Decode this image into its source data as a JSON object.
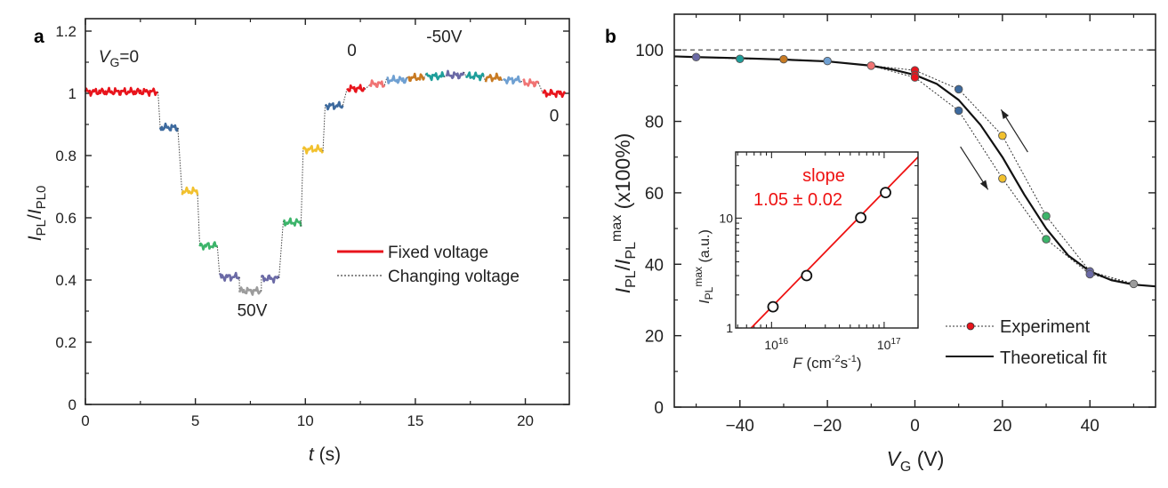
{
  "chart_data": [
    {
      "panel_label": "a",
      "type": "line",
      "xlabel": {
        "var": "t",
        "unit": " (s)"
      },
      "ylabel": {
        "a": "I",
        "a_sub": "PL",
        "slash": "/",
        "b": "I",
        "b_sub": "PL0"
      },
      "xlim": [
        0,
        22
      ],
      "ylim": [
        0,
        1.24
      ],
      "xticks": [
        0,
        5,
        10,
        15,
        20
      ],
      "xtick_labels": [
        "0",
        "5",
        "10",
        "15",
        "20"
      ],
      "yticks": [
        0,
        0.2,
        0.4,
        0.6,
        0.8,
        1.0,
        1.2
      ],
      "ytick_labels": [
        "0",
        "0.2",
        "0.4",
        "0.6",
        "0.8",
        "1",
        "1.2"
      ],
      "segments": [
        {
          "t": [
            0.0,
            3.3
          ],
          "value": 1.005,
          "color": "#e8141c"
        },
        {
          "t": [
            3.4,
            4.2
          ],
          "value": 0.89,
          "color": "#3d6a9e"
        },
        {
          "t": [
            4.4,
            5.1
          ],
          "value": 0.685,
          "color": "#f2c12e"
        },
        {
          "t": [
            5.2,
            6.0
          ],
          "value": 0.51,
          "color": "#3cb46a"
        },
        {
          "t": [
            6.1,
            7.0
          ],
          "value": 0.41,
          "color": "#6b6aa6"
        },
        {
          "t": [
            7.0,
            8.0
          ],
          "value": 0.365,
          "color": "#9c9c9c"
        },
        {
          "t": [
            8.0,
            8.8
          ],
          "value": 0.405,
          "color": "#6b6aa6"
        },
        {
          "t": [
            9.0,
            9.8
          ],
          "value": 0.585,
          "color": "#3cb46a"
        },
        {
          "t": [
            9.9,
            10.8
          ],
          "value": 0.82,
          "color": "#f2c12e"
        },
        {
          "t": [
            10.9,
            11.7
          ],
          "value": 0.96,
          "color": "#3d6a9e"
        },
        {
          "t": [
            11.9,
            12.7
          ],
          "value": 1.015,
          "color": "#e8141c"
        },
        {
          "t": [
            12.9,
            13.6
          ],
          "value": 1.03,
          "color": "#f07474"
        },
        {
          "t": [
            13.7,
            14.6
          ],
          "value": 1.043,
          "color": "#6fa0d2"
        },
        {
          "t": [
            14.7,
            15.4
          ],
          "value": 1.05,
          "color": "#c87a22"
        },
        {
          "t": [
            15.5,
            16.3
          ],
          "value": 1.055,
          "color": "#1e9e9a"
        },
        {
          "t": [
            16.4,
            17.2
          ],
          "value": 1.058,
          "color": "#6b6aa6"
        },
        {
          "t": [
            17.3,
            18.1
          ],
          "value": 1.055,
          "color": "#1e9e9a"
        },
        {
          "t": [
            18.2,
            18.9
          ],
          "value": 1.05,
          "color": "#c87a22"
        },
        {
          "t": [
            19.0,
            19.8
          ],
          "value": 1.043,
          "color": "#6fa0d2"
        },
        {
          "t": [
            19.9,
            20.6
          ],
          "value": 1.033,
          "color": "#f07474"
        },
        {
          "t": [
            20.8,
            21.8
          ],
          "value": 1.0,
          "color": "#e8141c"
        }
      ],
      "annotations": [
        {
          "text": "V",
          "sub": "G",
          "rest": "=0",
          "t": 0.6,
          "y": 1.1
        },
        {
          "text": "0",
          "t": 11.9,
          "y": 1.12
        },
        {
          "text": "-50V",
          "t": 15.5,
          "y": 1.165
        },
        {
          "text": "50V",
          "t": 6.9,
          "y": 0.285
        },
        {
          "text": "0",
          "t": 21.1,
          "y": 0.91
        }
      ],
      "legend": [
        {
          "label": "Fixed voltage",
          "style": "solid",
          "color": "#e8141c"
        },
        {
          "label": "Changing voltage",
          "style": "dotted",
          "color": "#444444"
        }
      ]
    },
    {
      "panel_label": "b",
      "type": "scatter+line",
      "xlabel": {
        "var": "V",
        "sub": "G",
        "unit": " (V)"
      },
      "ylabel": {
        "a": "I",
        "a_sub": "PL",
        "slash": "/",
        "b": "I",
        "b_sub": "PL",
        "b_sup": "max",
        "rest": " (x100%)"
      },
      "xlim": [
        -55,
        55
      ],
      "ylim": [
        0,
        110
      ],
      "xticks": [
        -40,
        -20,
        0,
        20,
        40
      ],
      "xtick_labels": [
        "−40",
        "−20",
        "0",
        "20",
        "40"
      ],
      "yticks": [
        0,
        20,
        40,
        60,
        80,
        100
      ],
      "ytick_labels": [
        "0",
        "20",
        "40",
        "60",
        "80",
        "100"
      ],
      "reference_line": 100,
      "experiment": {
        "name": "Experiment",
        "points": [
          {
            "x": -50,
            "y": 98.0,
            "color": "#6b6aa6"
          },
          {
            "x": -40,
            "y": 97.5,
            "color": "#1e9e9a"
          },
          {
            "x": -30,
            "y": 97.4,
            "color": "#c87a22"
          },
          {
            "x": -20,
            "y": 96.9,
            "color": "#6fa0d2"
          },
          {
            "x": -10,
            "y": 95.6,
            "color": "#f07474"
          },
          {
            "x": 0,
            "y": 94.3,
            "color": "#e8141c"
          },
          {
            "x": 0,
            "y": 93.0,
            "color": "#e8141c"
          },
          {
            "x": 0,
            "y": 92.3,
            "color": "#e8141c"
          },
          {
            "x": 10,
            "y": 89.0,
            "color": "#3d6a9e"
          },
          {
            "x": 10,
            "y": 83.0,
            "color": "#3d6a9e"
          },
          {
            "x": 20,
            "y": 76.0,
            "color": "#f2c12e"
          },
          {
            "x": 20,
            "y": 64.0,
            "color": "#f2c12e"
          },
          {
            "x": 30,
            "y": 53.5,
            "color": "#3cb46a"
          },
          {
            "x": 30,
            "y": 47.0,
            "color": "#3cb46a"
          },
          {
            "x": 40,
            "y": 38.0,
            "color": "#6b6aa6"
          },
          {
            "x": 40,
            "y": 37.2,
            "color": "#6b6aa6"
          },
          {
            "x": 50,
            "y": 34.5,
            "color": "#9c9c9c"
          }
        ],
        "sweep_lines": [
          [
            [
              -50,
              98.0
            ],
            [
              -40,
              97.5
            ],
            [
              -30,
              97.4
            ],
            [
              -20,
              96.9
            ],
            [
              -10,
              95.6
            ],
            [
              0,
              92.3
            ],
            [
              10,
              83.0
            ],
            [
              20,
              64.0
            ],
            [
              30,
              47.0
            ],
            [
              40,
              37.2
            ],
            [
              50,
              34.5
            ]
          ],
          [
            [
              50,
              34.5
            ],
            [
              40,
              38.0
            ],
            [
              30,
              53.5
            ],
            [
              20,
              76.0
            ],
            [
              10,
              89.0
            ],
            [
              0,
              94.3
            ],
            [
              -10,
              95.6
            ]
          ]
        ]
      },
      "fit": {
        "name": "Theoretical fit",
        "x": [
          -55,
          -50,
          -40,
          -30,
          -20,
          -10,
          -5,
          0,
          5,
          10,
          15,
          20,
          25,
          30,
          35,
          40,
          45,
          50,
          55
        ],
        "y": [
          98.2,
          98.0,
          97.7,
          97.3,
          96.8,
          95.6,
          94.5,
          93.0,
          90.5,
          86.0,
          79.0,
          70.0,
          59.5,
          50.0,
          42.5,
          38.0,
          35.5,
          34.3,
          33.8
        ]
      },
      "arrows": [
        {
          "direction": "up",
          "from": [
            25.8,
            71.4
          ],
          "to": [
            19.7,
            83.3
          ]
        },
        {
          "direction": "down",
          "from": [
            10.4,
            72.9
          ],
          "to": [
            16.7,
            60.9
          ]
        }
      ],
      "legend": [
        {
          "label": "Experiment",
          "style": "dotted-with-marker",
          "color": "#e8141c"
        },
        {
          "label": "Theoretical fit",
          "style": "solid",
          "color": "#111111"
        }
      ]
    },
    {
      "panel_label": "inset",
      "type": "scatter+line",
      "xscale": "log",
      "yscale": "log",
      "xlabel": {
        "var": "F",
        "unit_a": " (cm",
        "sup1": "-2",
        "unit_b": "s",
        "sup2": "-1",
        "unit_c": ")"
      },
      "ylabel": {
        "a": "I",
        "a_sub": "PL",
        "a_sup": "max",
        "rest": " (a.u.)"
      },
      "xlim": [
        4800000000000000.0,
        2e+17
      ],
      "ylim": [
        1,
        40
      ],
      "xticks": [
        1e+16,
        1e+17
      ],
      "xtick_labels": [
        {
          "base": "10",
          "exp": "16"
        },
        {
          "base": "10",
          "exp": "17"
        }
      ],
      "yticks": [
        1,
        10
      ],
      "ytick_labels": [
        "1",
        "10"
      ],
      "points": {
        "x": [
          1.03e+16,
          2.05e+16,
          6.2e+16,
          1.03e+17
        ],
        "y": [
          1.56,
          3.0,
          10.1,
          17.1
        ]
      },
      "fit": {
        "slope": 1.05,
        "prefactor_at_1e16": 1.55,
        "color": "#ee1111"
      },
      "annotation": {
        "line1": "slope",
        "line2": "1.05 ± 0.02",
        "color": "#ee1111"
      }
    }
  ]
}
